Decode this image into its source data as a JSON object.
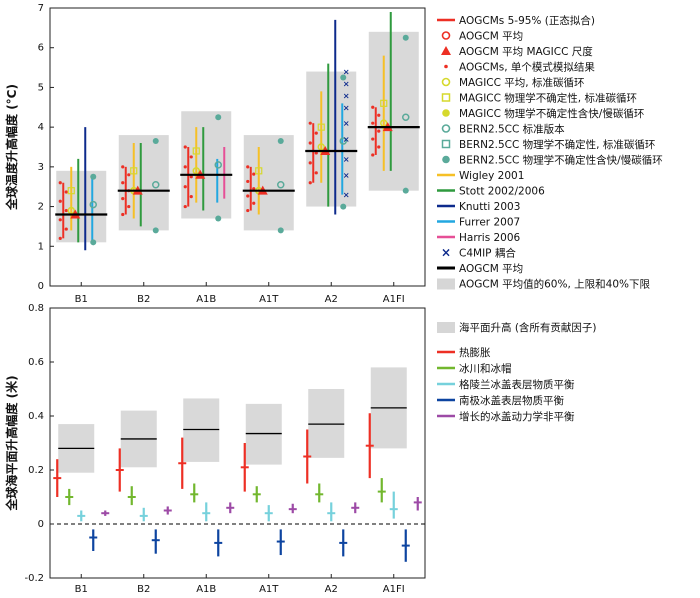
{
  "chart_data": [
    {
      "type": "box-range",
      "title": "",
      "ylabel": "全球温度升高幅度 (°C)",
      "ylim": [
        0,
        7
      ],
      "yticks": [
        "0",
        "1",
        "2",
        "3",
        "4",
        "5",
        "6",
        "7"
      ],
      "categories": [
        "B1",
        "B2",
        "A1B",
        "A1T",
        "A2",
        "A1FI"
      ],
      "aogcm_mean": [
        1.8,
        2.4,
        2.8,
        2.4,
        3.4,
        4.0
      ],
      "range_low": [
        1.1,
        1.4,
        1.7,
        1.4,
        2.0,
        2.4
      ],
      "range_high": [
        2.9,
        3.8,
        4.4,
        3.8,
        5.4,
        6.4
      ],
      "aogcm_5_95": [
        [
          1.2,
          2.6
        ],
        [
          1.8,
          3.0
        ],
        [
          2.0,
          3.5
        ],
        [
          1.9,
          3.0
        ],
        [
          2.6,
          4.1
        ],
        [
          3.3,
          4.5
        ]
      ],
      "magicc_mean": [
        1.9,
        2.4,
        2.9,
        2.4,
        3.5,
        4.1
      ],
      "c4mip_points": [
        2.3,
        2.8,
        3.2,
        3.7,
        4.1,
        4.5,
        4.8,
        5.1,
        5.4
      ],
      "series": [
        {
          "name": "Wigley 2001",
          "color": "#f6c026",
          "ranges": [
            [
              1.4,
              3.0
            ],
            [
              1.7,
              3.6
            ],
            [
              2.1,
              4.0
            ],
            [
              1.8,
              3.5
            ],
            [
              2.6,
              4.9
            ],
            [
              2.9,
              5.8
            ]
          ]
        },
        {
          "name": "Stott 2002/2006",
          "color": "#2f9a3e",
          "ranges": [
            [
              1.1,
              3.2
            ],
            [
              1.5,
              3.6
            ],
            [
              1.9,
              4.0
            ],
            [
              null,
              null
            ],
            [
              2.0,
              5.6
            ],
            [
              2.9,
              6.9
            ]
          ]
        },
        {
          "name": "Knutti 2003",
          "color": "#0d2a8c",
          "ranges": [
            [
              0.9,
              4.0
            ],
            [
              null,
              null
            ],
            [
              null,
              null
            ],
            [
              null,
              null
            ],
            [
              1.8,
              6.7
            ],
            [
              null,
              null
            ]
          ]
        },
        {
          "name": "Furrer 2007",
          "color": "#22a7e0",
          "ranges": [
            [
              1.1,
              2.8
            ],
            [
              null,
              null
            ],
            [
              2.1,
              3.2
            ],
            [
              null,
              null
            ],
            [
              2.3,
              4.6
            ],
            [
              null,
              null
            ]
          ]
        },
        {
          "name": "Harris 2006",
          "color": "#e64f96",
          "ranges": [
            [
              null,
              null
            ],
            [
              null,
              null
            ],
            [
              2.2,
              3.5
            ],
            [
              null,
              null
            ],
            [
              null,
              null
            ],
            [
              null,
              null
            ]
          ]
        }
      ],
      "legend": [
        {
          "label": "AOGCMs 5-95% (正态拟合)",
          "symbol": "line",
          "color": "#ed2f24"
        },
        {
          "label": "AOGCM 平均",
          "symbol": "ring",
          "color": "#ed2f24"
        },
        {
          "label": "AOGCM 平均 MAGICC 尺度",
          "symbol": "triangle",
          "color": "#ed2f24"
        },
        {
          "label": "AOGCMs, 单个模式模拟结果",
          "symbol": "dot",
          "color": "#ed2f24"
        },
        {
          "label": "MAGICC 平均, 标准碳循环",
          "symbol": "ring",
          "color": "#d6d92c"
        },
        {
          "label": "MAGICC 物理学不确定性, 标准碳循环",
          "symbol": "square",
          "color": "#d6d92c"
        },
        {
          "label": "MAGICC 物理学不确定性含快/慢碳循环",
          "symbol": "star",
          "color": "#d6d92c"
        },
        {
          "label": "BERN2.5CC 标准版本",
          "symbol": "ring",
          "color": "#5aaa9a"
        },
        {
          "label": "BERN2.5CC 物理学不确定性, 标准碳循环",
          "symbol": "square",
          "color": "#5aaa9a"
        },
        {
          "label": "BERN2.5CC 物理学不确定性含快/慢碳循环",
          "symbol": "star",
          "color": "#5aaa9a"
        },
        {
          "label": "Wigley 2001",
          "symbol": "line",
          "color": "#f6c026"
        },
        {
          "label": "Stott 2002/2006",
          "symbol": "line",
          "color": "#2f9a3e"
        },
        {
          "label": "Knutti 2003",
          "symbol": "line",
          "color": "#0d2a8c"
        },
        {
          "label": "Furrer 2007",
          "symbol": "line",
          "color": "#22a7e0"
        },
        {
          "label": "Harris 2006",
          "symbol": "line",
          "color": "#e64f96"
        },
        {
          "label": "C4MIP 耦合",
          "symbol": "cross",
          "color": "#0d2a8c"
        },
        {
          "label": "AOGCM 平均",
          "symbol": "thickline",
          "color": "#000000"
        },
        {
          "label": "AOGCM 平均值的60%, 上限和40%下限",
          "symbol": "box",
          "color": "#d6d6d6"
        }
      ]
    },
    {
      "type": "box-range",
      "title": "",
      "ylabel": "全球海平面升高幅度 (米)",
      "ylim": [
        -0.2,
        0.8
      ],
      "yticks": [
        "-0.2",
        "0",
        "0.2",
        "0.4",
        "0.6",
        "0.8"
      ],
      "categories": [
        "B1",
        "B2",
        "A1B",
        "A1T",
        "A2",
        "A1FI"
      ],
      "total_mid": [
        0.28,
        0.315,
        0.35,
        0.335,
        0.37,
        0.43
      ],
      "total_low": [
        0.19,
        0.21,
        0.23,
        0.22,
        0.245,
        0.28
      ],
      "total_high": [
        0.37,
        0.42,
        0.465,
        0.445,
        0.5,
        0.58
      ],
      "series": [
        {
          "name": "热膨胀",
          "color": "#ed2f24",
          "mid": [
            0.17,
            0.2,
            0.225,
            0.21,
            0.25,
            0.29
          ],
          "low": [
            0.1,
            0.12,
            0.13,
            0.12,
            0.15,
            0.17
          ],
          "high": [
            0.24,
            0.28,
            0.32,
            0.3,
            0.35,
            0.41
          ]
        },
        {
          "name": "冰川和冰帽",
          "color": "#72b72e",
          "mid": [
            0.1,
            0.1,
            0.11,
            0.11,
            0.11,
            0.12
          ],
          "low": [
            0.07,
            0.07,
            0.08,
            0.08,
            0.08,
            0.08
          ],
          "high": [
            0.13,
            0.14,
            0.15,
            0.14,
            0.15,
            0.17
          ]
        },
        {
          "name": "格陵兰冰盖表层物质平衡",
          "color": "#76d1dc",
          "mid": [
            0.03,
            0.03,
            0.04,
            0.04,
            0.04,
            0.055
          ],
          "low": [
            0.01,
            0.01,
            0.01,
            0.01,
            0.01,
            0.02
          ],
          "high": [
            0.05,
            0.06,
            0.08,
            0.07,
            0.08,
            0.12
          ]
        },
        {
          "name": "南极冰盖表层物质平衡",
          "color": "#0d44a0",
          "mid": [
            -0.05,
            -0.06,
            -0.07,
            -0.065,
            -0.07,
            -0.08
          ],
          "low": [
            -0.1,
            -0.11,
            -0.12,
            -0.115,
            -0.12,
            -0.14
          ],
          "high": [
            -0.02,
            -0.02,
            -0.02,
            -0.02,
            -0.02,
            -0.02
          ]
        },
        {
          "name": "增长的冰盖动力学非平衡",
          "color": "#9d4aa6",
          "mid": [
            0.04,
            0.05,
            0.06,
            0.055,
            0.06,
            0.08
          ],
          "low": [
            0.03,
            0.035,
            0.04,
            0.04,
            0.04,
            0.05
          ],
          "high": [
            0.05,
            0.065,
            0.08,
            0.075,
            0.08,
            0.1
          ]
        }
      ],
      "legend": [
        {
          "label": "海平面升高 (含所有贡献因子)",
          "symbol": "box",
          "color": "#d6d6d6"
        },
        {
          "label": "热膨胀",
          "symbol": "line",
          "color": "#ed2f24"
        },
        {
          "label": "冰川和冰帽",
          "symbol": "line",
          "color": "#72b72e"
        },
        {
          "label": "格陵兰冰盖表层物质平衡",
          "symbol": "line",
          "color": "#76d1dc"
        },
        {
          "label": "南极冰盖表层物质平衡",
          "symbol": "line",
          "color": "#0d44a0"
        },
        {
          "label": "增长的冰盖动力学非平衡",
          "symbol": "line",
          "color": "#9d4aa6"
        }
      ]
    }
  ]
}
